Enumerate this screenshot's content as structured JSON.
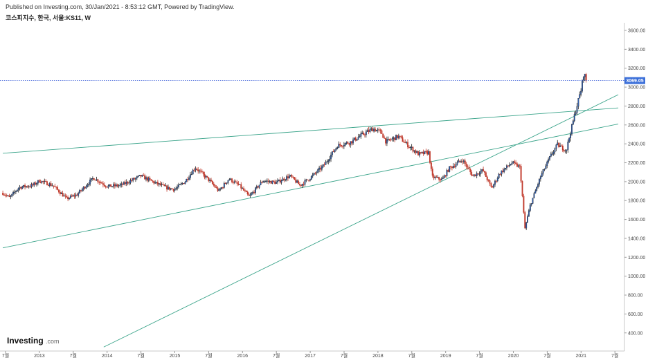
{
  "header": {
    "published": "Published on Investing.com, 30/Jan/2021 - 8:53:12 GMT, Powered by TradingView.",
    "symbol": "코스피지수, 한국, 서울:KS11, W"
  },
  "logo": {
    "main": "Investing",
    "sub": ".com"
  },
  "chart_data": {
    "type": "candlestick",
    "frequency": "weekly",
    "y_axis": {
      "range": [
        300,
        3700
      ],
      "ticks": [
        "3600.00",
        "3400.00",
        "3200.00",
        "3000.00",
        "2800.00",
        "2600.00",
        "2400.00",
        "2200.00",
        "2000.00",
        "1800.00",
        "1600.00",
        "1400.00",
        "1200.00",
        "1000.00",
        "800.00",
        "600.00",
        "400.00"
      ],
      "position": "right"
    },
    "x_axis": {
      "ticks": [
        {
          "label": "7월",
          "date": 2012.5
        },
        {
          "label": "2013",
          "date": 2013.0
        },
        {
          "label": "7월",
          "date": 2013.5
        },
        {
          "label": "2014",
          "date": 2014.0
        },
        {
          "label": "7월",
          "date": 2014.5
        },
        {
          "label": "2015",
          "date": 2015.0
        },
        {
          "label": "7월",
          "date": 2015.5
        },
        {
          "label": "2016",
          "date": 2016.0
        },
        {
          "label": "7월",
          "date": 2016.5
        },
        {
          "label": "2017",
          "date": 2017.0
        },
        {
          "label": "7월",
          "date": 2017.5
        },
        {
          "label": "2018",
          "date": 2018.0
        },
        {
          "label": "7월",
          "date": 2018.5
        },
        {
          "label": "2019",
          "date": 2019.0
        },
        {
          "label": "7월",
          "date": 2019.5
        },
        {
          "label": "2020",
          "date": 2020.0
        },
        {
          "label": "7월",
          "date": 2020.5
        },
        {
          "label": "2021",
          "date": 2021.0
        },
        {
          "label": "7월",
          "date": 2021.5
        }
      ]
    },
    "last_price": "3069.05",
    "last_price_value": 3069.05,
    "trendlines": [
      {
        "from": [
          2012.46,
          2300
        ],
        "to": [
          2021.55,
          2780
        ]
      },
      {
        "from": [
          2012.46,
          1300
        ],
        "to": [
          2021.55,
          2610
        ]
      },
      {
        "from": [
          2013.95,
          250
        ],
        "to": [
          2021.55,
          2920
        ]
      }
    ],
    "price_path": [
      [
        2012.46,
        1880
      ],
      [
        2012.56,
        1830
      ],
      [
        2012.7,
        1940
      ],
      [
        2012.9,
        1960
      ],
      [
        2013.0,
        2010
      ],
      [
        2013.2,
        1960
      ],
      [
        2013.4,
        1820
      ],
      [
        2013.55,
        1860
      ],
      [
        2013.8,
        2040
      ],
      [
        2014.0,
        1950
      ],
      [
        2014.2,
        1960
      ],
      [
        2014.5,
        2060
      ],
      [
        2014.7,
        1990
      ],
      [
        2014.9,
        1930
      ],
      [
        2015.0,
        1920
      ],
      [
        2015.15,
        2000
      ],
      [
        2015.3,
        2150
      ],
      [
        2015.5,
        2020
      ],
      [
        2015.65,
        1900
      ],
      [
        2015.8,
        2030
      ],
      [
        2015.95,
        1960
      ],
      [
        2016.1,
        1840
      ],
      [
        2016.3,
        2010
      ],
      [
        2016.5,
        1990
      ],
      [
        2016.7,
        2060
      ],
      [
        2016.85,
        1960
      ],
      [
        2017.0,
        2040
      ],
      [
        2017.2,
        2170
      ],
      [
        2017.4,
        2380
      ],
      [
        2017.6,
        2420
      ],
      [
        2017.8,
        2510
      ],
      [
        2017.93,
        2560
      ],
      [
        2018.05,
        2520
      ],
      [
        2018.12,
        2420
      ],
      [
        2018.3,
        2480
      ],
      [
        2018.45,
        2380
      ],
      [
        2018.6,
        2290
      ],
      [
        2018.75,
        2310
      ],
      [
        2018.8,
        2050
      ],
      [
        2018.95,
        2020
      ],
      [
        2019.05,
        2140
      ],
      [
        2019.25,
        2230
      ],
      [
        2019.4,
        2060
      ],
      [
        2019.55,
        2120
      ],
      [
        2019.68,
        1930
      ],
      [
        2019.8,
        2090
      ],
      [
        2019.98,
        2200
      ],
      [
        2020.1,
        2150
      ],
      [
        2020.17,
        1500
      ],
      [
        2020.25,
        1750
      ],
      [
        2020.4,
        2050
      ],
      [
        2020.55,
        2270
      ],
      [
        2020.65,
        2390
      ],
      [
        2020.78,
        2330
      ],
      [
        2020.87,
        2600
      ],
      [
        2020.93,
        2780
      ],
      [
        2021.0,
        2970
      ],
      [
        2021.04,
        3150
      ],
      [
        2021.08,
        3069
      ]
    ]
  }
}
